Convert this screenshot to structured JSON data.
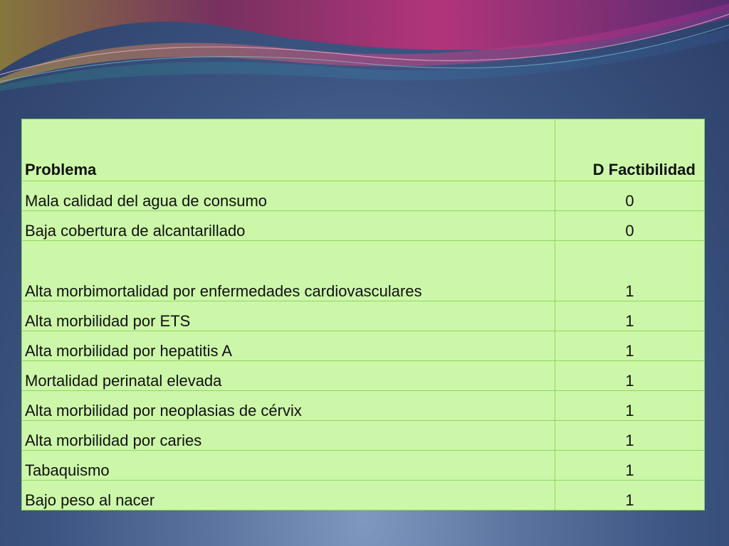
{
  "table": {
    "headers": [
      "Problema",
      "D Factibilidad"
    ],
    "rows": [
      {
        "problem": "Mala calidad del agua de consumo",
        "value": "0"
      },
      {
        "problem": "Baja cobertura de alcantarillado",
        "value": "0"
      },
      {
        "problem": "Alta morbimortalidad por enfermedades cardiovasculares",
        "value": "1"
      },
      {
        "problem": "Alta morbilidad por ETS",
        "value": "1"
      },
      {
        "problem": "Alta morbilidad por hepatitis A",
        "value": "1"
      },
      {
        "problem": "Mortalidad perinatal elevada",
        "value": "1"
      },
      {
        "problem": "Alta morbilidad por neoplasias de cérvix",
        "value": "1"
      },
      {
        "problem": "Alta morbilidad por caries",
        "value": "1"
      },
      {
        "problem": "Tabaquismo",
        "value": "1"
      },
      {
        "problem": "Bajo peso al nacer",
        "value": "1"
      }
    ]
  },
  "colors": {
    "background": "#3d5582",
    "table_fill": "#ccf7a9",
    "table_border": "#8fd65f",
    "swoosh_magenta": "#c0307a",
    "swoosh_gold": "#c9a23a"
  }
}
